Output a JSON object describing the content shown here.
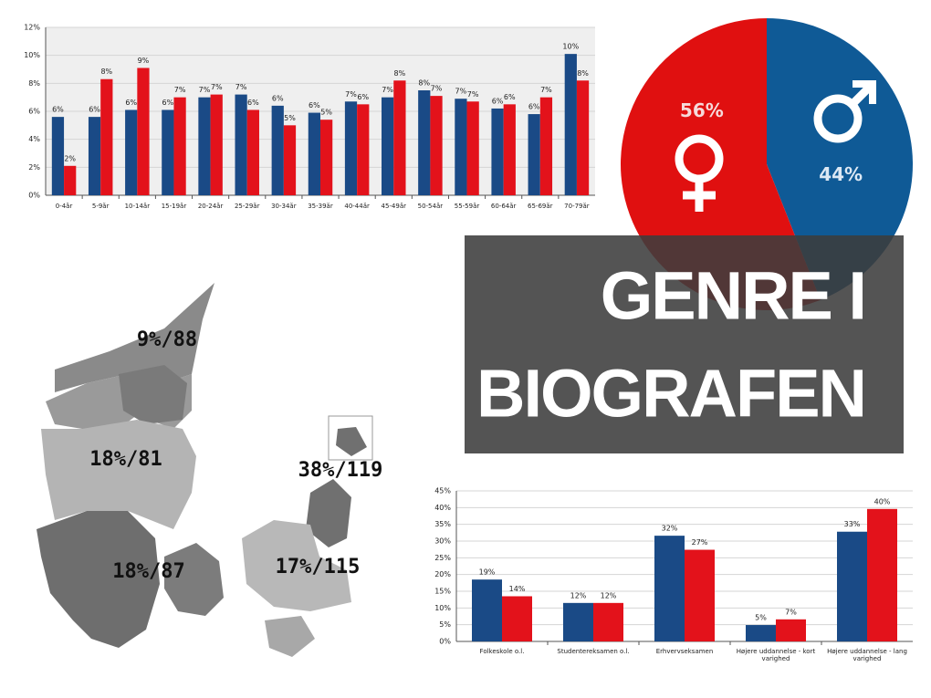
{
  "chart_data": [
    {
      "type": "bar",
      "categories": [
        "0-4år",
        "5-9år",
        "10-14år",
        "15-19år",
        "20-24år",
        "25-29år",
        "30-34år",
        "35-39år",
        "40-44år",
        "45-49år",
        "50-54år",
        "55-59år",
        "60-64år",
        "65-69år",
        "70-79år"
      ],
      "series": [
        {
          "color": "#1a4a86",
          "values": [
            5.6,
            5.6,
            6.1,
            6.1,
            7.0,
            7.2,
            6.4,
            5.9,
            6.7,
            7.0,
            7.5,
            6.9,
            6.2,
            5.8,
            10.1
          ],
          "value_labels": [
            "6%",
            "6%",
            "6%",
            "6%",
            "7%",
            "7%",
            "6%",
            "6%",
            "7%",
            "7%",
            "8%",
            "7%",
            "6%",
            "6%",
            "10%"
          ]
        },
        {
          "color": "#e3121b",
          "values": [
            2.1,
            8.3,
            9.1,
            7.0,
            7.2,
            6.1,
            5.0,
            5.4,
            6.5,
            8.2,
            7.1,
            6.7,
            6.5,
            7.0,
            8.2
          ],
          "value_labels": [
            "2%",
            "8%",
            "9%",
            "7%",
            "7%",
            "6%",
            "5%",
            "5%",
            "6%",
            "8%",
            "7%",
            "7%",
            "6%",
            "7%",
            "8%"
          ]
        }
      ],
      "ylim": [
        0,
        12
      ],
      "yticks": [
        {
          "value": 0,
          "label": "0%"
        },
        {
          "value": 2,
          "label": "2%"
        },
        {
          "value": 4,
          "label": "4%"
        },
        {
          "value": 6,
          "label": "6%"
        },
        {
          "value": 8,
          "label": "8%"
        },
        {
          "value": 10,
          "label": "10%"
        },
        {
          "value": 12,
          "label": "12%"
        }
      ],
      "grid": true
    },
    {
      "type": "pie",
      "values": [
        44,
        56
      ],
      "value_labels": [
        "44%",
        "56%"
      ],
      "colors": [
        "#0f5a96",
        "#e01010"
      ]
    },
    {
      "type": "bar",
      "categories": [
        "Folkeskole o.l.",
        "Studentereksamen o.l.",
        "Erhvervseksamen",
        "Højere uddannelse - kort varighed",
        "Højere uddannelse - lang varighed"
      ],
      "series": [
        {
          "color": "#1a4a86",
          "values": [
            18.5,
            11.5,
            31.6,
            4.9,
            32.8
          ],
          "value_labels": [
            "19%",
            "12%",
            "32%",
            "5%",
            "33%"
          ]
        },
        {
          "color": "#e3121b",
          "values": [
            13.5,
            11.5,
            27.4,
            6.6,
            39.6
          ],
          "value_labels": [
            "14%",
            "12%",
            "27%",
            "7%",
            "40%"
          ]
        }
      ],
      "ylim": [
        0,
        45
      ],
      "yticks": [
        {
          "value": 0,
          "label": "0%"
        },
        {
          "value": 5,
          "label": "5%"
        },
        {
          "value": 10,
          "label": "10%"
        },
        {
          "value": 15,
          "label": "15%"
        },
        {
          "value": 20,
          "label": "20%"
        },
        {
          "value": 25,
          "label": "25%"
        },
        {
          "value": 30,
          "label": "30%"
        },
        {
          "value": 35,
          "label": "35%"
        },
        {
          "value": 40,
          "label": "40%"
        },
        {
          "value": 45,
          "label": "45%"
        }
      ],
      "grid": true
    }
  ],
  "map": {
    "region_labels": [
      "9%/88",
      "18%/81",
      "38%/119",
      "18%/87",
      "17%/115"
    ]
  },
  "title_box": {
    "lines": [
      "GENRE I",
      "BIOGRAFEN"
    ]
  }
}
